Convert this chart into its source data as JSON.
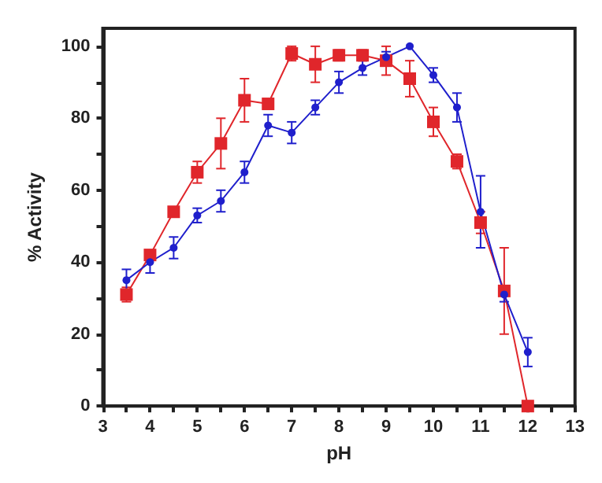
{
  "chart_data": {
    "type": "line",
    "xlabel": "pH",
    "ylabel": "% Activity",
    "x": [
      3.5,
      4,
      4.5,
      5,
      5.5,
      6,
      6.5,
      7,
      7.5,
      8,
      8.5,
      9,
      9.5,
      10,
      10.5,
      11,
      11.5,
      12
    ],
    "series": [
      {
        "color": "#e0262b",
        "marker": "square",
        "values": [
          31,
          42,
          54,
          65,
          73,
          85,
          84,
          98,
          95,
          97.5,
          97.5,
          96,
          91,
          79,
          68,
          51,
          32,
          0
        ],
        "errors": [
          2,
          1,
          1,
          3,
          7,
          6,
          1,
          2,
          5,
          1.5,
          1.5,
          4,
          5,
          4,
          2,
          3,
          12,
          null
        ]
      },
      {
        "color": "#1f1fcc",
        "marker": "circle",
        "values": [
          35,
          40,
          44,
          53,
          57,
          65,
          78,
          76,
          83,
          90,
          94,
          97,
          100,
          92,
          83,
          54,
          31,
          15
        ],
        "errors": [
          3,
          3,
          3,
          2,
          3,
          3,
          3,
          3,
          2,
          3,
          2,
          1.5,
          null,
          2,
          4,
          10,
          2,
          4
        ]
      }
    ],
    "xlim": [
      3,
      13
    ],
    "xticks": [
      3,
      {
        "value": 3.5,
        "label": null
      },
      4,
      {
        "value": 4.5,
        "label": null
      },
      5,
      {
        "value": 5.5,
        "label": null
      },
      6,
      {
        "value": 6.5,
        "label": null
      },
      7,
      {
        "value": 7.5,
        "label": null
      },
      8,
      {
        "value": 8.5,
        "label": null
      },
      9,
      {
        "value": 9.5,
        "label": null
      },
      10,
      {
        "value": 10.5,
        "label": null
      },
      11,
      {
        "value": 11.5,
        "label": null
      },
      12,
      {
        "value": 12.5,
        "label": null
      },
      13
    ],
    "ylim": [
      0,
      105
    ],
    "yticks": [
      0,
      {
        "value": 10,
        "label": null
      },
      20,
      {
        "value": 30,
        "label": null
      },
      40,
      {
        "value": 50,
        "label": null
      },
      60,
      {
        "value": 70,
        "label": null
      },
      80,
      {
        "value": 90,
        "label": null
      },
      100
    ],
    "grid": false,
    "line_style": "solid"
  }
}
